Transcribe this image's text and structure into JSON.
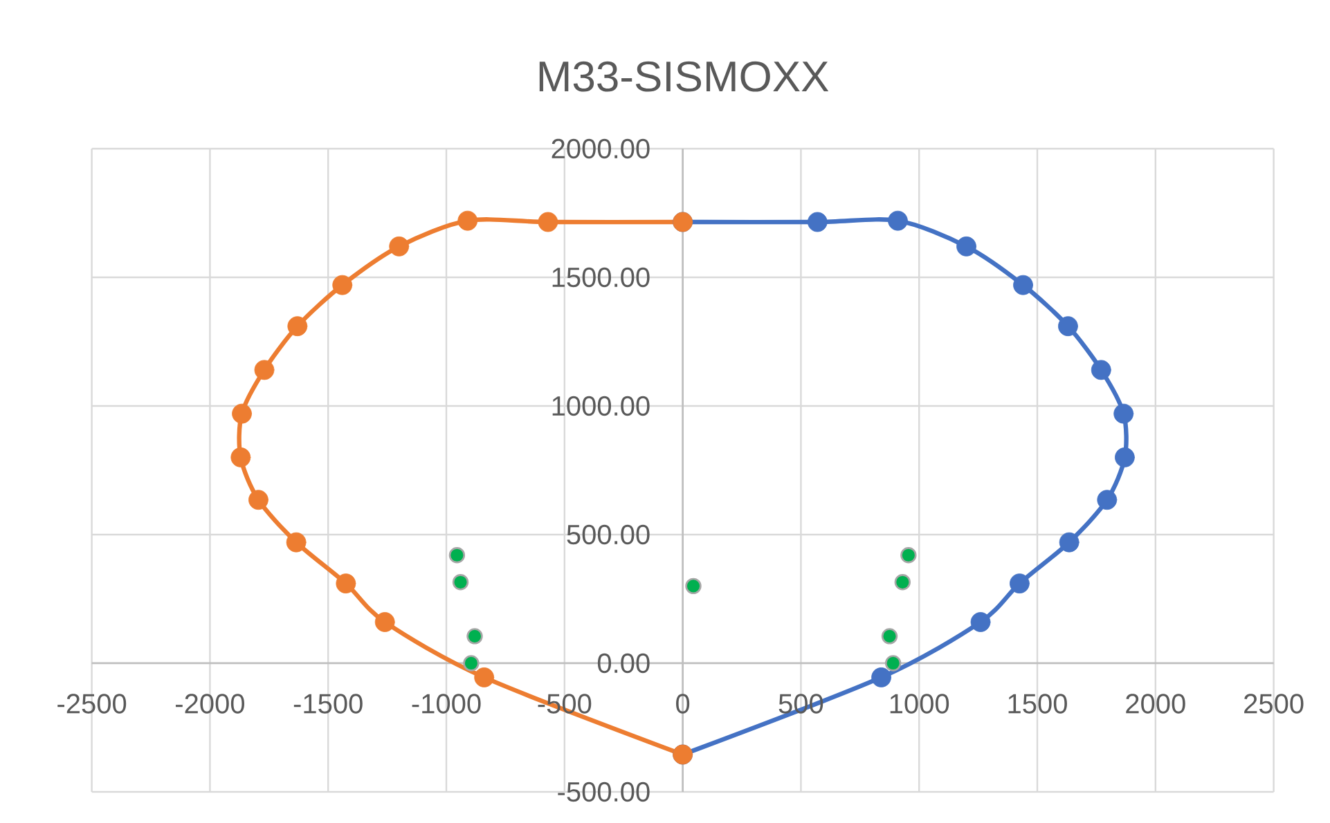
{
  "chart_data": {
    "type": "line",
    "title": "M33-SISMOXX",
    "xlim": [
      -2500,
      2500
    ],
    "xticks": [
      -2500,
      -2000,
      -1500,
      -1000,
      -500,
      0,
      500,
      1000,
      1500,
      2000,
      2500
    ],
    "ylim": [
      -500,
      2000
    ],
    "yticks": [
      {
        "value": -500,
        "label": "-500.00"
      },
      {
        "value": 0,
        "label": "0.00"
      },
      {
        "value": 500,
        "label": "500.00"
      },
      {
        "value": 1000,
        "label": "1000.00"
      },
      {
        "value": 1500,
        "label": "1500.00"
      },
      {
        "value": 2000,
        "label": "2000.00"
      }
    ],
    "grid": true,
    "marker": "circle",
    "line_style": "solid",
    "series": [
      {
        "color": "#4472c4",
        "x": [
          0,
          570,
          910,
          1200,
          1440,
          1630,
          1770,
          1865,
          1870,
          1795,
          1635,
          1425,
          1260,
          840,
          0
        ],
        "values": [
          1715,
          1715,
          1720,
          1620,
          1470,
          1310,
          1140,
          970,
          800,
          635,
          470,
          310,
          160,
          -55,
          -355
        ]
      },
      {
        "color": "#ed7d31",
        "x": [
          0,
          -570,
          -910,
          -1200,
          -1440,
          -1630,
          -1770,
          -1865,
          -1870,
          -1795,
          -1635,
          -1425,
          -1260,
          -840,
          0
        ],
        "values": [
          1715,
          1715,
          1720,
          1620,
          1470,
          1310,
          1140,
          970,
          800,
          635,
          470,
          310,
          160,
          -55,
          -355
        ]
      },
      {
        "type": "scatter",
        "color": "#00b050",
        "x": [
          -955,
          -940,
          -880,
          -895,
          45,
          955,
          930,
          875,
          890
        ],
        "values": [
          420,
          315,
          105,
          0,
          300,
          420,
          315,
          105,
          0
        ]
      }
    ]
  }
}
